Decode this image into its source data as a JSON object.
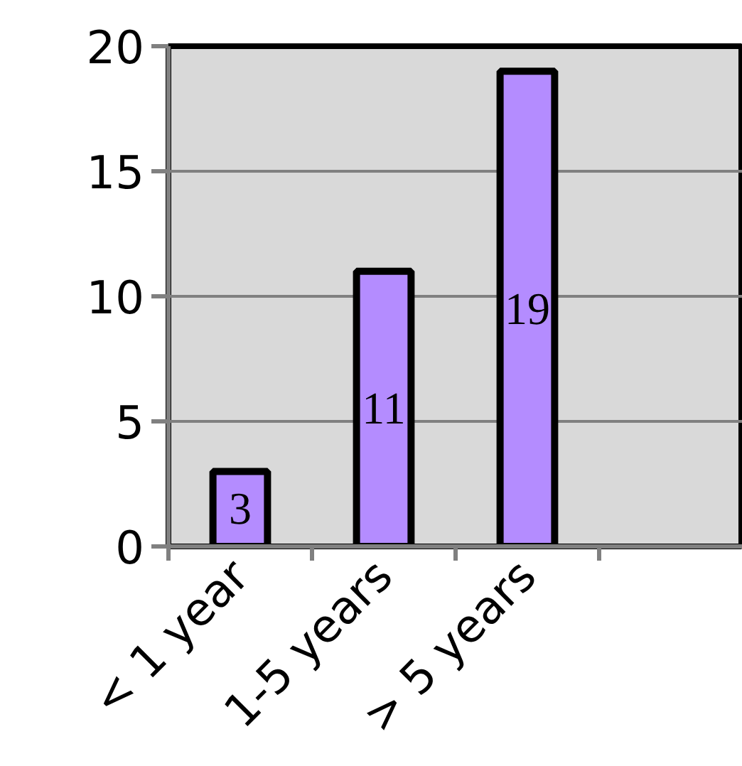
{
  "chart_data": {
    "type": "bar",
    "categories": [
      "< 1 year",
      "1-5 years",
      "> 5 years",
      null
    ],
    "values": [
      3,
      11,
      19,
      null
    ],
    "color": "#b48cff",
    "ylim": [
      0,
      20
    ],
    "yticks": [
      0,
      5,
      10,
      15,
      20
    ],
    "grid": "y",
    "data_labels": true
  }
}
